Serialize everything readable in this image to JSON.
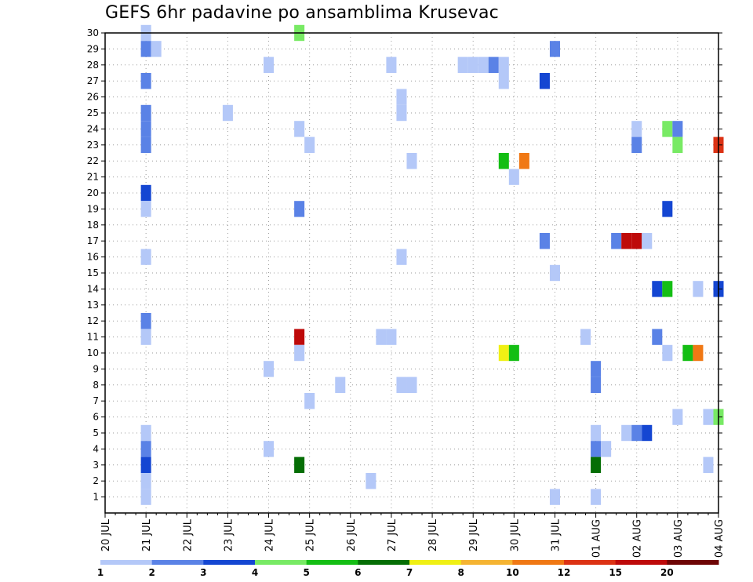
{
  "title": "GEFS 6hr padavine po ansamblima Krusevac",
  "chart_data": {
    "type": "heatmap",
    "title": "GEFS 6hr padavine po ansamblima Krusevac",
    "y_ticks": [
      1,
      2,
      3,
      4,
      5,
      6,
      7,
      8,
      9,
      10,
      11,
      12,
      13,
      14,
      15,
      16,
      17,
      18,
      19,
      20,
      21,
      22,
      23,
      24,
      25,
      26,
      27,
      28,
      29,
      30
    ],
    "ylim": [
      0,
      30
    ],
    "x_day_labels": [
      "20 JUL",
      "21 JUL",
      "22 JUL",
      "23 JUL",
      "24 JUL",
      "25 JUL",
      "26 JUL",
      "27 JUL",
      "28 JUL",
      "29 JUL",
      "30 JUL",
      "31 JUL",
      "01 AUG",
      "02 AUG",
      "03 AUG",
      "04 AUG"
    ],
    "x_unit": "6h steps from 20 JUL 00Z",
    "xlim": [
      0,
      60
    ],
    "grid": true,
    "colorbar": {
      "labels": [
        "1",
        "2",
        "3",
        "4",
        "5",
        "6",
        "7",
        "8",
        "10",
        "12",
        "15",
        "20"
      ],
      "colors": [
        "#b4c8f8",
        "#5a82e6",
        "#1446d2",
        "#78ea64",
        "#14be14",
        "#056e05",
        "#f0f014",
        "#f5b432",
        "#f07814",
        "#dc3214",
        "#be0a0a",
        "#6e0505"
      ]
    },
    "cells": [
      {
        "t": 4,
        "m": 30,
        "c": 1
      },
      {
        "t": 19,
        "m": 30,
        "c": 4
      },
      {
        "t": 4,
        "m": 29,
        "c": 2
      },
      {
        "t": 5,
        "m": 29,
        "c": 1
      },
      {
        "t": 44,
        "m": 29,
        "c": 2
      },
      {
        "t": 16,
        "m": 28,
        "c": 1
      },
      {
        "t": 28,
        "m": 28,
        "c": 1
      },
      {
        "t": 35,
        "m": 28,
        "c": 1
      },
      {
        "t": 36,
        "m": 28,
        "c": 1
      },
      {
        "t": 37,
        "m": 28,
        "c": 1
      },
      {
        "t": 38,
        "m": 28,
        "c": 2
      },
      {
        "t": 39,
        "m": 28,
        "c": 1
      },
      {
        "t": 4,
        "m": 27,
        "c": 2
      },
      {
        "t": 39,
        "m": 27,
        "c": 1
      },
      {
        "t": 43,
        "m": 27,
        "c": 3
      },
      {
        "t": 29,
        "m": 26,
        "c": 1
      },
      {
        "t": 4,
        "m": 25,
        "c": 2
      },
      {
        "t": 12,
        "m": 25,
        "c": 1
      },
      {
        "t": 29,
        "m": 25,
        "c": 1
      },
      {
        "t": 4,
        "m": 24,
        "c": 2
      },
      {
        "t": 19,
        "m": 24,
        "c": 1
      },
      {
        "t": 52,
        "m": 24,
        "c": 1
      },
      {
        "t": 55,
        "m": 24,
        "c": 4
      },
      {
        "t": 56,
        "m": 24,
        "c": 2
      },
      {
        "t": 4,
        "m": 23,
        "c": 2
      },
      {
        "t": 20,
        "m": 23,
        "c": 1
      },
      {
        "t": 52,
        "m": 23,
        "c": 2
      },
      {
        "t": 56,
        "m": 23,
        "c": 4
      },
      {
        "t": 60,
        "m": 23,
        "c": 10
      },
      {
        "t": 30,
        "m": 22,
        "c": 1
      },
      {
        "t": 39,
        "m": 22,
        "c": 5
      },
      {
        "t": 41,
        "m": 22,
        "c": 9
      },
      {
        "t": 40,
        "m": 21,
        "c": 1
      },
      {
        "t": 4,
        "m": 20,
        "c": 3
      },
      {
        "t": 4,
        "m": 19,
        "c": 1
      },
      {
        "t": 19,
        "m": 19,
        "c": 2
      },
      {
        "t": 55,
        "m": 19,
        "c": 3
      },
      {
        "t": 43,
        "m": 17,
        "c": 2
      },
      {
        "t": 50,
        "m": 17,
        "c": 2
      },
      {
        "t": 51,
        "m": 17,
        "c": 11
      },
      {
        "t": 52,
        "m": 17,
        "c": 11
      },
      {
        "t": 53,
        "m": 17,
        "c": 1
      },
      {
        "t": 4,
        "m": 16,
        "c": 1
      },
      {
        "t": 29,
        "m": 16,
        "c": 1
      },
      {
        "t": 44,
        "m": 15,
        "c": 1
      },
      {
        "t": 54,
        "m": 14,
        "c": 3
      },
      {
        "t": 55,
        "m": 14,
        "c": 5
      },
      {
        "t": 58,
        "m": 14,
        "c": 1
      },
      {
        "t": 60,
        "m": 14,
        "c": 3
      },
      {
        "t": 4,
        "m": 12,
        "c": 2
      },
      {
        "t": 4,
        "m": 11,
        "c": 1
      },
      {
        "t": 27,
        "m": 11,
        "c": 1
      },
      {
        "t": 28,
        "m": 11,
        "c": 1
      },
      {
        "t": 19,
        "m": 11,
        "c": 11
      },
      {
        "t": 47,
        "m": 11,
        "c": 1
      },
      {
        "t": 54,
        "m": 11,
        "c": 2
      },
      {
        "t": 19,
        "m": 10,
        "c": 1
      },
      {
        "t": 39,
        "m": 10,
        "c": 7
      },
      {
        "t": 40,
        "m": 10,
        "c": 5
      },
      {
        "t": 55,
        "m": 10,
        "c": 1
      },
      {
        "t": 57,
        "m": 10,
        "c": 5
      },
      {
        "t": 58,
        "m": 10,
        "c": 9
      },
      {
        "t": 16,
        "m": 9,
        "c": 1
      },
      {
        "t": 48,
        "m": 9,
        "c": 2
      },
      {
        "t": 23,
        "m": 8,
        "c": 1
      },
      {
        "t": 29,
        "m": 8,
        "c": 1
      },
      {
        "t": 30,
        "m": 8,
        "c": 1
      },
      {
        "t": 48,
        "m": 8,
        "c": 2
      },
      {
        "t": 20,
        "m": 7,
        "c": 1
      },
      {
        "t": 56,
        "m": 6,
        "c": 1
      },
      {
        "t": 59,
        "m": 6,
        "c": 1
      },
      {
        "t": 60,
        "m": 6,
        "c": 4
      },
      {
        "t": 4,
        "m": 5,
        "c": 1
      },
      {
        "t": 48,
        "m": 5,
        "c": 1
      },
      {
        "t": 51,
        "m": 5,
        "c": 1
      },
      {
        "t": 52,
        "m": 5,
        "c": 2
      },
      {
        "t": 53,
        "m": 5,
        "c": 3
      },
      {
        "t": 4,
        "m": 4,
        "c": 2
      },
      {
        "t": 16,
        "m": 4,
        "c": 1
      },
      {
        "t": 48,
        "m": 4,
        "c": 2
      },
      {
        "t": 49,
        "m": 4,
        "c": 1
      },
      {
        "t": 4,
        "m": 3,
        "c": 3
      },
      {
        "t": 19,
        "m": 3,
        "c": 6
      },
      {
        "t": 48,
        "m": 3,
        "c": 6
      },
      {
        "t": 59,
        "m": 3,
        "c": 1
      },
      {
        "t": 4,
        "m": 2,
        "c": 1
      },
      {
        "t": 26,
        "m": 2,
        "c": 1
      },
      {
        "t": 4,
        "m": 1,
        "c": 1
      },
      {
        "t": 44,
        "m": 1,
        "c": 1
      },
      {
        "t": 48,
        "m": 1,
        "c": 1
      }
    ]
  }
}
